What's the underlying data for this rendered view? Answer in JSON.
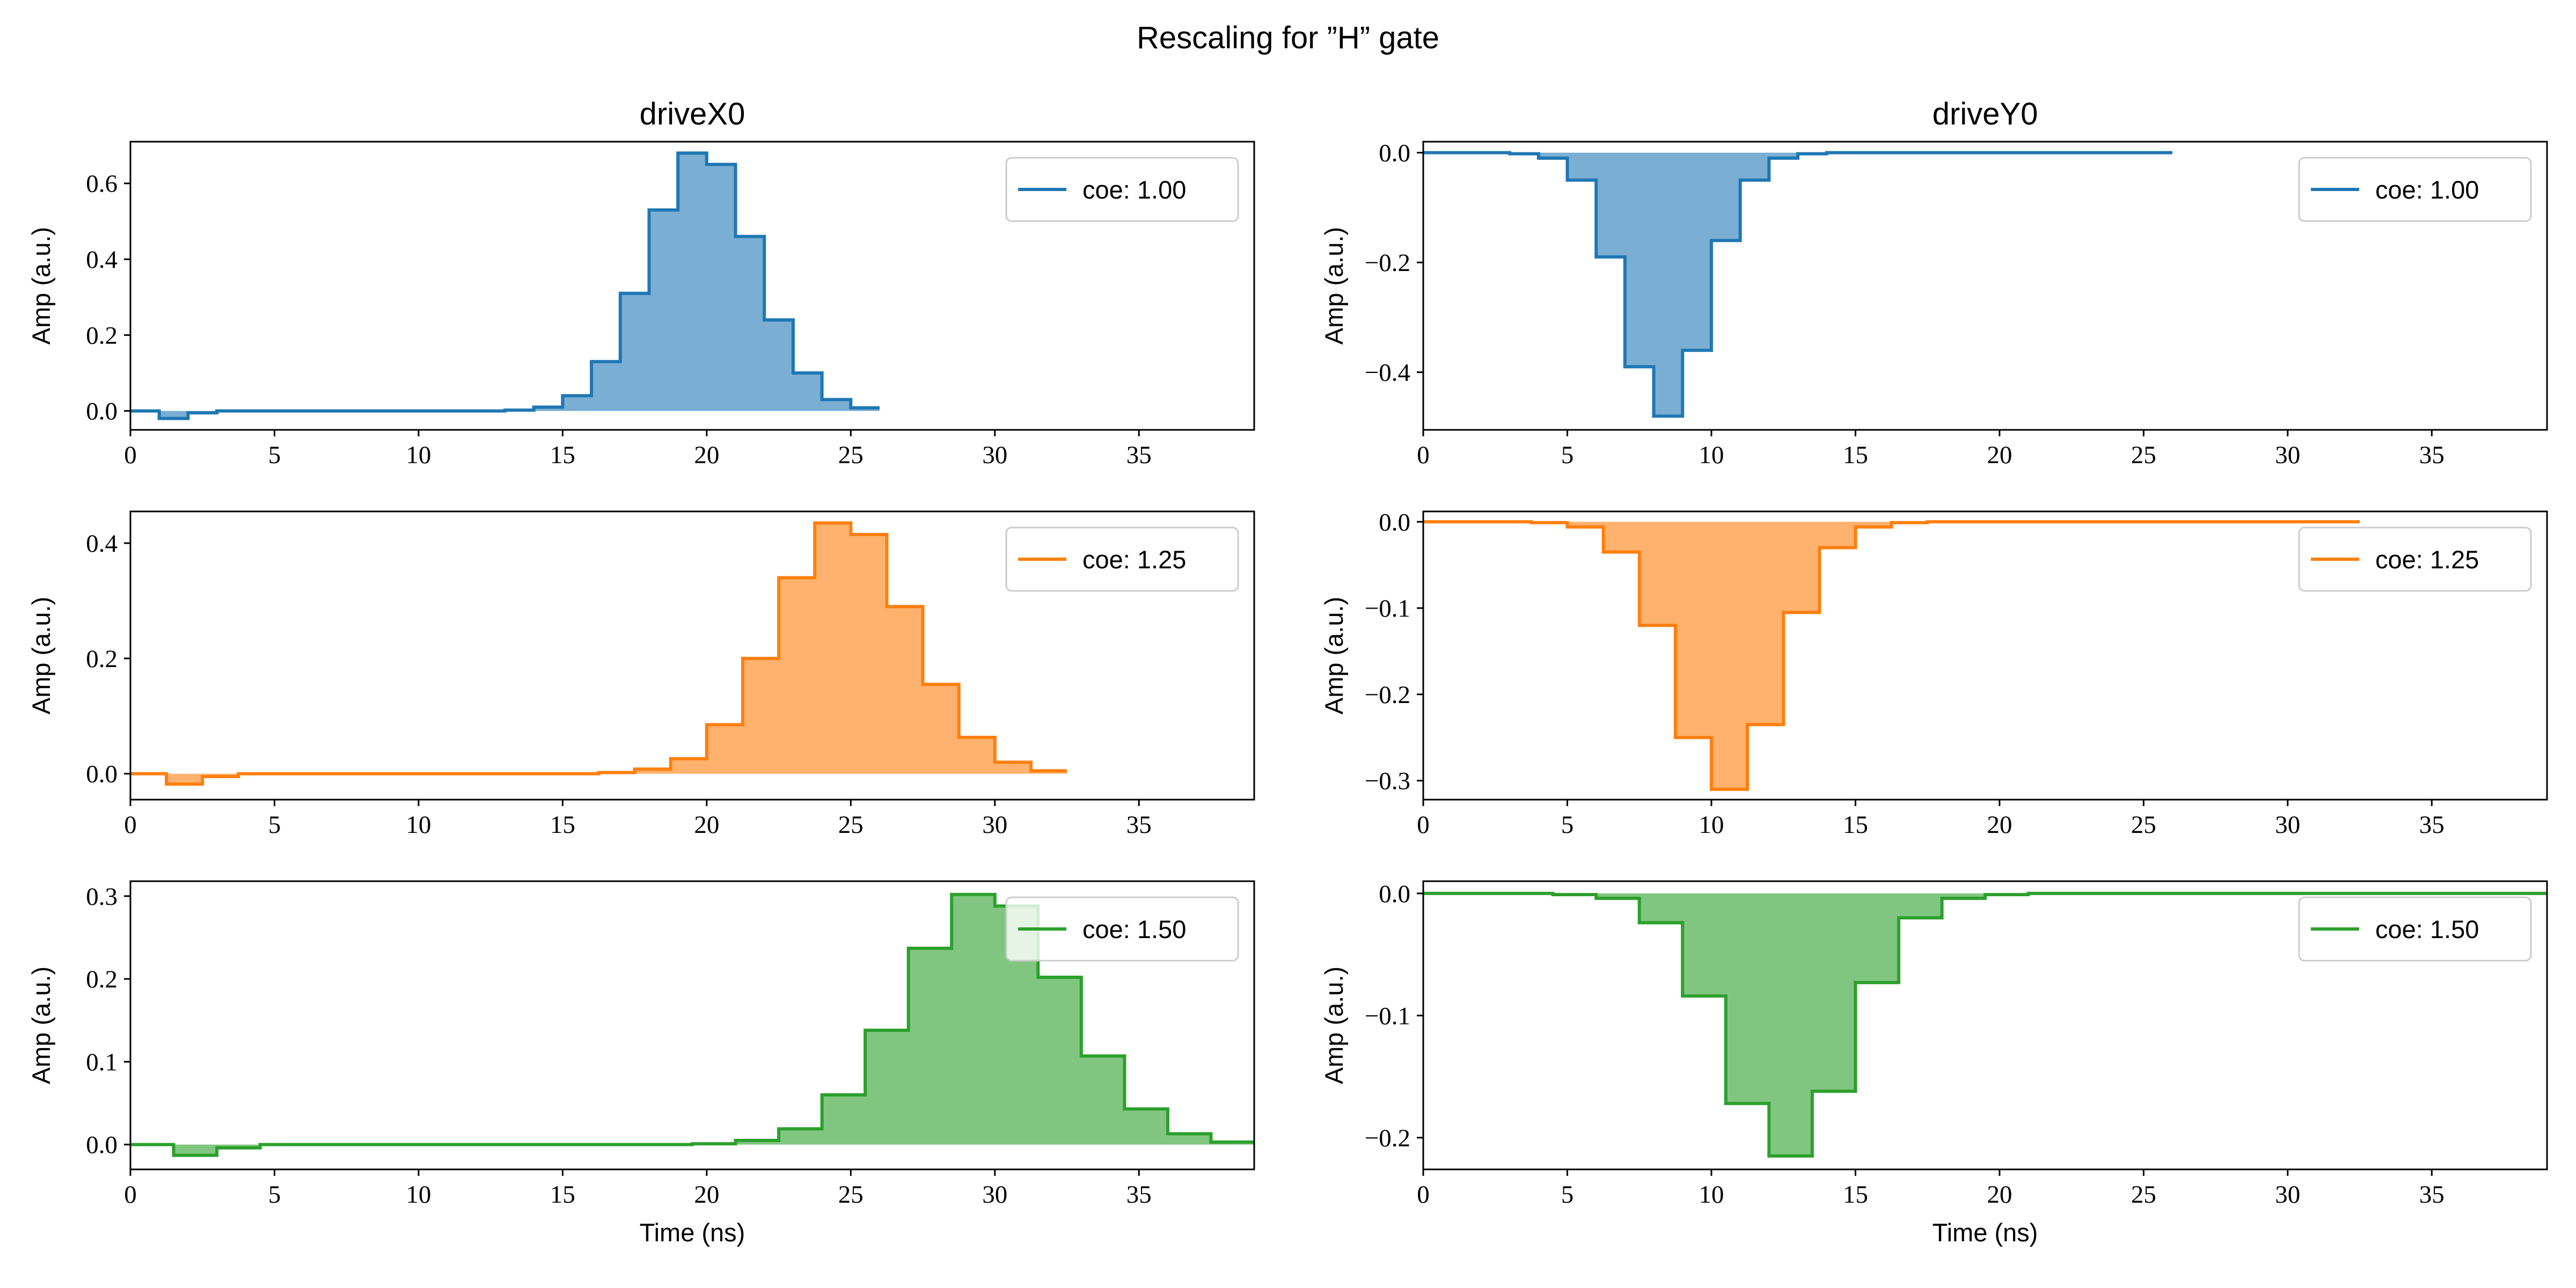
{
  "figure": {
    "title": "Rescaling for ”H” gate"
  },
  "chart_data": [
    {
      "type": "area",
      "title": "driveX0",
      "xlabel": "",
      "ylabel": "Amp (a.u.)",
      "xlim": [
        0,
        39
      ],
      "ylim": [
        -0.05,
        0.71
      ],
      "xticks": [
        0,
        5,
        10,
        15,
        20,
        25,
        30,
        35
      ],
      "xtick_labels": [
        "0",
        "5",
        "10",
        "15",
        "20",
        "25",
        "30",
        "35"
      ],
      "yticks": [
        0.0,
        0.2,
        0.4,
        0.6
      ],
      "ytick_labels": [
        "0.0",
        "0.2",
        "0.4",
        "0.6"
      ],
      "legend_position": "top-right",
      "grid": false,
      "series": [
        {
          "name": "coe: 1.00",
          "color": "#1f77b4",
          "fill_color": "#7aaed3",
          "step_width": 1.0,
          "end_x": 26,
          "values": [
            0.0,
            -0.02,
            -0.005,
            0.0,
            0.0,
            0.0,
            0.0,
            0.0,
            0.0,
            0.0,
            0.0,
            0.0,
            0.0,
            0.002,
            0.01,
            0.04,
            0.13,
            0.31,
            0.53,
            0.68,
            0.65,
            0.46,
            0.24,
            0.1,
            0.03,
            0.008
          ]
        }
      ]
    },
    {
      "type": "area",
      "title": "driveY0",
      "xlabel": "",
      "ylabel": "Amp (a.u.)",
      "xlim": [
        0,
        39
      ],
      "ylim": [
        -0.505,
        0.02
      ],
      "xticks": [
        0,
        5,
        10,
        15,
        20,
        25,
        30,
        35
      ],
      "xtick_labels": [
        "0",
        "5",
        "10",
        "15",
        "20",
        "25",
        "30",
        "35"
      ],
      "yticks": [
        0.0,
        -0.2,
        -0.4
      ],
      "ytick_labels": [
        "0.0",
        "−0.2",
        "−0.4"
      ],
      "legend_position": "top-right",
      "grid": false,
      "series": [
        {
          "name": "coe: 1.00",
          "color": "#1f77b4",
          "fill_color": "#7aaed3",
          "step_width": 1.0,
          "end_x": 26,
          "values": [
            0.0,
            0.0,
            0.0,
            -0.002,
            -0.01,
            -0.05,
            -0.19,
            -0.39,
            -0.48,
            -0.36,
            -0.16,
            -0.05,
            -0.01,
            -0.002,
            0.0,
            0.0,
            0.0,
            0.0,
            0.0,
            0.0,
            0.0,
            0.0,
            0.0,
            0.0,
            0.0,
            0.0
          ]
        }
      ]
    },
    {
      "type": "area",
      "title": "",
      "xlabel": "",
      "ylabel": "Amp (a.u.)",
      "xlim": [
        0,
        39
      ],
      "ylim": [
        -0.045,
        0.455
      ],
      "xticks": [
        0,
        5,
        10,
        15,
        20,
        25,
        30,
        35
      ],
      "xtick_labels": [
        "0",
        "5",
        "10",
        "15",
        "20",
        "25",
        "30",
        "35"
      ],
      "yticks": [
        0.0,
        0.2,
        0.4
      ],
      "ytick_labels": [
        "0.0",
        "0.2",
        "0.4"
      ],
      "legend_position": "top-right",
      "grid": false,
      "series": [
        {
          "name": "coe: 1.25",
          "color": "#ff7f0e",
          "fill_color": "#ffb26e",
          "step_width": 1.25,
          "end_x": 32.5,
          "values": [
            0.0,
            -0.018,
            -0.005,
            0.0,
            0.0,
            0.0,
            0.0,
            0.0,
            0.0,
            0.0,
            0.0,
            0.0,
            0.0,
            0.002,
            0.008,
            0.026,
            0.085,
            0.2,
            0.34,
            0.435,
            0.415,
            0.29,
            0.155,
            0.063,
            0.02,
            0.005
          ]
        }
      ]
    },
    {
      "type": "area",
      "title": "",
      "xlabel": "",
      "ylabel": "Amp (a.u.)",
      "xlim": [
        0,
        39
      ],
      "ylim": [
        -0.322,
        0.012
      ],
      "xticks": [
        0,
        5,
        10,
        15,
        20,
        25,
        30,
        35
      ],
      "xtick_labels": [
        "0",
        "5",
        "10",
        "15",
        "20",
        "25",
        "30",
        "35"
      ],
      "yticks": [
        0.0,
        -0.1,
        -0.2,
        -0.3
      ],
      "ytick_labels": [
        "0.0",
        "−0.1",
        "−0.2",
        "−0.3"
      ],
      "legend_position": "top-right",
      "grid": false,
      "series": [
        {
          "name": "coe: 1.25",
          "color": "#ff7f0e",
          "fill_color": "#ffb26e",
          "step_width": 1.25,
          "end_x": 32.5,
          "values": [
            0.0,
            0.0,
            0.0,
            -0.001,
            -0.006,
            -0.035,
            -0.12,
            -0.25,
            -0.31,
            -0.235,
            -0.105,
            -0.03,
            -0.006,
            -0.001,
            0.0,
            0.0,
            0.0,
            0.0,
            0.0,
            0.0,
            0.0,
            0.0,
            0.0,
            0.0,
            0.0,
            0.0
          ]
        }
      ]
    },
    {
      "type": "area",
      "title": "",
      "xlabel": "Time (ns)",
      "ylabel": "Amp (a.u.)",
      "xlim": [
        0,
        39
      ],
      "ylim": [
        -0.03,
        0.318
      ],
      "xticks": [
        0,
        5,
        10,
        15,
        20,
        25,
        30,
        35
      ],
      "xtick_labels": [
        "0",
        "5",
        "10",
        "15",
        "20",
        "25",
        "30",
        "35"
      ],
      "yticks": [
        0.0,
        0.1,
        0.2,
        0.3
      ],
      "ytick_labels": [
        "0.0",
        "0.1",
        "0.2",
        "0.3"
      ],
      "legend_position": "top-right",
      "grid": false,
      "series": [
        {
          "name": "coe: 1.50",
          "color": "#2ca02c",
          "fill_color": "#80c680",
          "step_width": 1.5,
          "end_x": 39,
          "values": [
            0.0,
            -0.013,
            -0.004,
            0.0,
            0.0,
            0.0,
            0.0,
            0.0,
            0.0,
            0.0,
            0.0,
            0.0,
            0.0,
            0.001,
            0.005,
            0.019,
            0.06,
            0.138,
            0.237,
            0.302,
            0.288,
            0.202,
            0.107,
            0.043,
            0.013,
            0.003
          ]
        }
      ]
    },
    {
      "type": "area",
      "title": "",
      "xlabel": "Time (ns)",
      "ylabel": "Amp (a.u.)",
      "xlim": [
        0,
        39
      ],
      "ylim": [
        -0.226,
        0.01
      ],
      "xticks": [
        0,
        5,
        10,
        15,
        20,
        25,
        30,
        35
      ],
      "xtick_labels": [
        "0",
        "5",
        "10",
        "15",
        "20",
        "25",
        "30",
        "35"
      ],
      "yticks": [
        0.0,
        -0.1,
        -0.2
      ],
      "ytick_labels": [
        "0.0",
        "−0.1",
        "−0.2"
      ],
      "legend_position": "top-right",
      "grid": false,
      "series": [
        {
          "name": "coe: 1.50",
          "color": "#2ca02c",
          "fill_color": "#80c680",
          "step_width": 1.5,
          "end_x": 39,
          "values": [
            0.0,
            0.0,
            0.0,
            -0.001,
            -0.004,
            -0.024,
            -0.084,
            -0.172,
            -0.215,
            -0.162,
            -0.073,
            -0.02,
            -0.004,
            -0.001,
            0.0,
            0.0,
            0.0,
            0.0,
            0.0,
            0.0,
            0.0,
            0.0,
            0.0,
            0.0,
            0.0,
            0.0
          ]
        }
      ]
    }
  ]
}
